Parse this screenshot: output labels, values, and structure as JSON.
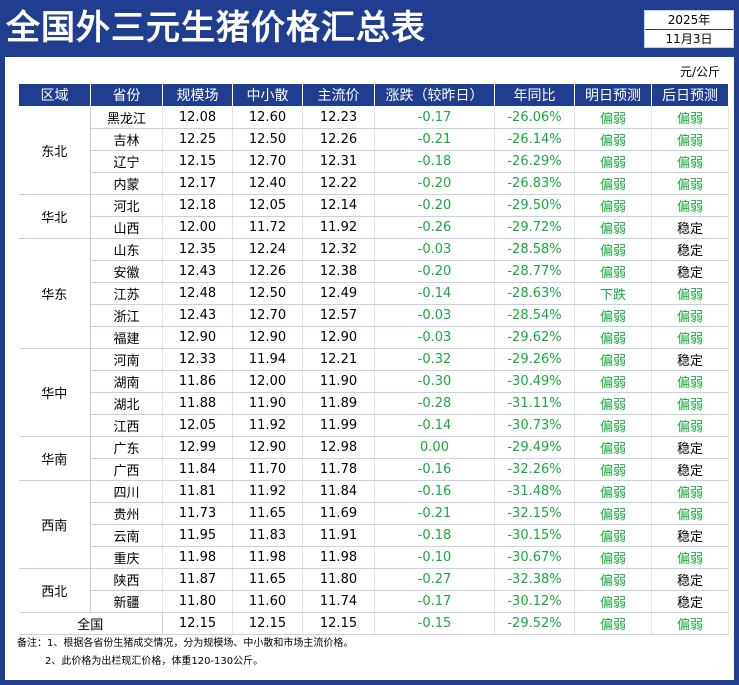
{
  "header": {
    "title": "全国外三元生猪价格汇总表",
    "year": "2025年",
    "date": "11月3日"
  },
  "unit": "元/公斤",
  "table": {
    "columns": [
      "区域",
      "省份",
      "规模场",
      "中小散",
      "主流价",
      "涨跌（较昨日）",
      "年同比",
      "明日预测",
      "后日预测"
    ],
    "groups": [
      {
        "region": "东北",
        "rows": [
          [
            "黑龙江",
            "12.08",
            "12.60",
            "12.23",
            "-0.17",
            "-26.06%",
            "偏弱",
            "偏弱"
          ],
          [
            "吉林",
            "12.25",
            "12.50",
            "12.26",
            "-0.21",
            "-26.14%",
            "偏弱",
            "偏弱"
          ],
          [
            "辽宁",
            "12.15",
            "12.70",
            "12.31",
            "-0.18",
            "-26.29%",
            "偏弱",
            "偏弱"
          ],
          [
            "内蒙",
            "12.17",
            "12.40",
            "12.22",
            "-0.20",
            "-26.83%",
            "偏弱",
            "偏弱"
          ]
        ]
      },
      {
        "region": "华北",
        "rows": [
          [
            "河北",
            "12.18",
            "12.05",
            "12.14",
            "-0.20",
            "-29.50%",
            "偏弱",
            "偏弱"
          ],
          [
            "山西",
            "12.00",
            "11.72",
            "11.92",
            "-0.26",
            "-29.72%",
            "偏弱",
            "稳定"
          ]
        ]
      },
      {
        "region": "华东",
        "rows": [
          [
            "山东",
            "12.35",
            "12.24",
            "12.32",
            "-0.03",
            "-28.58%",
            "偏弱",
            "稳定"
          ],
          [
            "安徽",
            "12.43",
            "12.26",
            "12.38",
            "-0.20",
            "-28.77%",
            "偏弱",
            "稳定"
          ],
          [
            "江苏",
            "12.48",
            "12.50",
            "12.49",
            "-0.14",
            "-28.63%",
            "下跌",
            "偏弱"
          ],
          [
            "浙江",
            "12.43",
            "12.70",
            "12.57",
            "-0.03",
            "-28.54%",
            "偏弱",
            "偏弱"
          ],
          [
            "福建",
            "12.90",
            "12.90",
            "12.90",
            "-0.03",
            "-29.62%",
            "偏弱",
            "偏弱"
          ]
        ]
      },
      {
        "region": "华中",
        "rows": [
          [
            "河南",
            "12.33",
            "11.94",
            "12.21",
            "-0.32",
            "-29.26%",
            "偏弱",
            "稳定"
          ],
          [
            "湖南",
            "11.86",
            "12.00",
            "11.90",
            "-0.30",
            "-30.49%",
            "偏弱",
            "偏弱"
          ],
          [
            "湖北",
            "11.88",
            "11.90",
            "11.89",
            "-0.28",
            "-31.11%",
            "偏弱",
            "偏弱"
          ],
          [
            "江西",
            "12.05",
            "11.92",
            "11.99",
            "-0.14",
            "-30.73%",
            "偏弱",
            "偏弱"
          ]
        ]
      },
      {
        "region": "华南",
        "rows": [
          [
            "广东",
            "12.99",
            "12.90",
            "12.98",
            "0.00",
            "-29.49%",
            "偏弱",
            "稳定"
          ],
          [
            "广西",
            "11.84",
            "11.70",
            "11.78",
            "-0.16",
            "-32.26%",
            "偏弱",
            "稳定"
          ]
        ]
      },
      {
        "region": "西南",
        "rows": [
          [
            "四川",
            "11.81",
            "11.92",
            "11.84",
            "-0.16",
            "-31.48%",
            "偏弱",
            "偏弱"
          ],
          [
            "贵州",
            "11.73",
            "11.65",
            "11.69",
            "-0.21",
            "-32.15%",
            "偏弱",
            "偏弱"
          ],
          [
            "云南",
            "11.95",
            "11.83",
            "11.91",
            "-0.18",
            "-30.15%",
            "偏弱",
            "稳定"
          ],
          [
            "重庆",
            "11.98",
            "11.98",
            "11.98",
            "-0.10",
            "-30.67%",
            "偏弱",
            "偏弱"
          ]
        ]
      },
      {
        "region": "西北",
        "rows": [
          [
            "陕西",
            "11.87",
            "11.65",
            "11.80",
            "-0.27",
            "-32.38%",
            "偏弱",
            "稳定"
          ],
          [
            "新疆",
            "11.80",
            "11.60",
            "11.74",
            "-0.17",
            "-30.12%",
            "偏弱",
            "稳定"
          ]
        ]
      }
    ],
    "national": [
      "全国",
      "12.15",
      "12.15",
      "12.15",
      "-0.15",
      "-29.52%",
      "偏弱",
      "偏弱"
    ]
  },
  "notes": [
    "备注：1、根据各省份生猪成交情况，分为规模场、中小散和市场主流价格。",
    "2、此价格为出栏现汇价格，体重120-130公斤。"
  ],
  "colors": {
    "brand_blue": "#1f3e8f",
    "rise_fall_green": "#18a93c"
  }
}
